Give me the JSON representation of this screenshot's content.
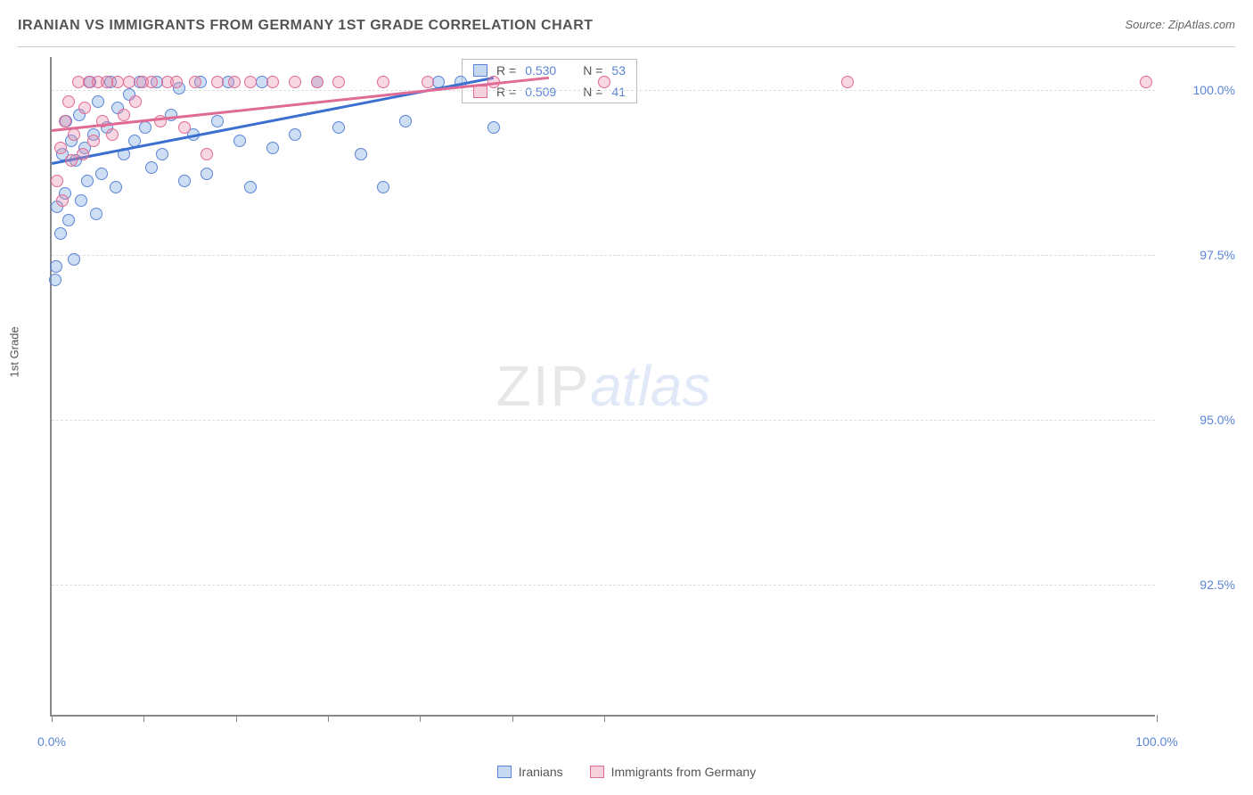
{
  "title": "IRANIAN VS IMMIGRANTS FROM GERMANY 1ST GRADE CORRELATION CHART",
  "source_label": "Source: ",
  "source_name": "ZipAtlas.com",
  "y_axis_label": "1st Grade",
  "watermark_a": "ZIP",
  "watermark_b": "atlas",
  "chart": {
    "type": "scatter",
    "background_color": "#ffffff",
    "grid_color": "#dddddd",
    "axis_color": "#888888",
    "xlim": [
      0,
      100
    ],
    "ylim": [
      90.5,
      100.5
    ],
    "y_ticks": [
      92.5,
      95.0,
      97.5,
      100.0
    ],
    "y_tick_labels": [
      "92.5%",
      "95.0%",
      "97.5%",
      "100.0%"
    ],
    "x_ticks": [
      0,
      8.3,
      16.7,
      25.0,
      33.3,
      41.7,
      50.0,
      100.0
    ],
    "x_tick_labels": {
      "0": "0.0%",
      "100": "100.0%"
    },
    "series": [
      {
        "name": "Iranians",
        "color": "#5b84d8",
        "fill": "rgba(115,160,222,0.35)",
        "marker_size": 14,
        "r": 0.53,
        "n": 53,
        "trend": {
          "x1": 0,
          "y1": 98.9,
          "x2": 40,
          "y2": 100.2
        },
        "points": [
          [
            0.3,
            97.1
          ],
          [
            0.5,
            98.2
          ],
          [
            0.8,
            97.8
          ],
          [
            1.0,
            99.0
          ],
          [
            1.2,
            98.4
          ],
          [
            1.3,
            99.5
          ],
          [
            1.5,
            98.0
          ],
          [
            1.8,
            99.2
          ],
          [
            2.0,
            97.4
          ],
          [
            2.2,
            98.9
          ],
          [
            2.5,
            99.6
          ],
          [
            2.7,
            98.3
          ],
          [
            3.0,
            99.1
          ],
          [
            3.2,
            98.6
          ],
          [
            3.5,
            100.1
          ],
          [
            3.8,
            99.3
          ],
          [
            4.0,
            98.1
          ],
          [
            4.2,
            99.8
          ],
          [
            4.5,
            98.7
          ],
          [
            5.0,
            99.4
          ],
          [
            5.3,
            100.1
          ],
          [
            5.8,
            98.5
          ],
          [
            6.0,
            99.7
          ],
          [
            6.5,
            99.0
          ],
          [
            7.0,
            99.9
          ],
          [
            7.5,
            99.2
          ],
          [
            8.0,
            100.1
          ],
          [
            8.5,
            99.4
          ],
          [
            9.0,
            98.8
          ],
          [
            9.5,
            100.1
          ],
          [
            10.0,
            99.0
          ],
          [
            10.8,
            99.6
          ],
          [
            11.5,
            100.0
          ],
          [
            12.0,
            98.6
          ],
          [
            12.8,
            99.3
          ],
          [
            13.5,
            100.1
          ],
          [
            14.0,
            98.7
          ],
          [
            15.0,
            99.5
          ],
          [
            16.0,
            100.1
          ],
          [
            17.0,
            99.2
          ],
          [
            18.0,
            98.5
          ],
          [
            19.0,
            100.1
          ],
          [
            20.0,
            99.1
          ],
          [
            22.0,
            99.3
          ],
          [
            24.0,
            100.1
          ],
          [
            26.0,
            99.4
          ],
          [
            28.0,
            99.0
          ],
          [
            30.0,
            98.5
          ],
          [
            32.0,
            99.5
          ],
          [
            35.0,
            100.1
          ],
          [
            37.0,
            100.1
          ],
          [
            40.0,
            99.4
          ],
          [
            0.4,
            97.3
          ]
        ]
      },
      {
        "name": "Immigrants from Germany",
        "color": "#e06b94",
        "fill": "rgba(232,140,168,0.35)",
        "marker_size": 14,
        "r": 0.509,
        "n": 41,
        "trend": {
          "x1": 0,
          "y1": 99.4,
          "x2": 45,
          "y2": 100.2
        },
        "points": [
          [
            0.5,
            98.6
          ],
          [
            0.8,
            99.1
          ],
          [
            1.0,
            98.3
          ],
          [
            1.2,
            99.5
          ],
          [
            1.5,
            99.8
          ],
          [
            1.8,
            98.9
          ],
          [
            2.0,
            99.3
          ],
          [
            2.4,
            100.1
          ],
          [
            2.8,
            99.0
          ],
          [
            3.0,
            99.7
          ],
          [
            3.4,
            100.1
          ],
          [
            3.8,
            99.2
          ],
          [
            4.2,
            100.1
          ],
          [
            4.6,
            99.5
          ],
          [
            5.0,
            100.1
          ],
          [
            5.5,
            99.3
          ],
          [
            6.0,
            100.1
          ],
          [
            6.5,
            99.6
          ],
          [
            7.0,
            100.1
          ],
          [
            7.6,
            99.8
          ],
          [
            8.2,
            100.1
          ],
          [
            9.0,
            100.1
          ],
          [
            9.8,
            99.5
          ],
          [
            10.5,
            100.1
          ],
          [
            11.3,
            100.1
          ],
          [
            12.0,
            99.4
          ],
          [
            13.0,
            100.1
          ],
          [
            14.0,
            99.0
          ],
          [
            15.0,
            100.1
          ],
          [
            16.5,
            100.1
          ],
          [
            18.0,
            100.1
          ],
          [
            20.0,
            100.1
          ],
          [
            22.0,
            100.1
          ],
          [
            24.0,
            100.1
          ],
          [
            26.0,
            100.1
          ],
          [
            30.0,
            100.1
          ],
          [
            34.0,
            100.1
          ],
          [
            40.0,
            100.1
          ],
          [
            50.0,
            100.1
          ],
          [
            72.0,
            100.1
          ],
          [
            99.0,
            100.1
          ]
        ]
      }
    ]
  },
  "stats_box": {
    "R_eq": "R = ",
    "N_eq": "N = "
  },
  "legend": [
    {
      "swatch": "blue",
      "label": "Iranians"
    },
    {
      "swatch": "pink",
      "label": "Immigrants from Germany"
    }
  ]
}
